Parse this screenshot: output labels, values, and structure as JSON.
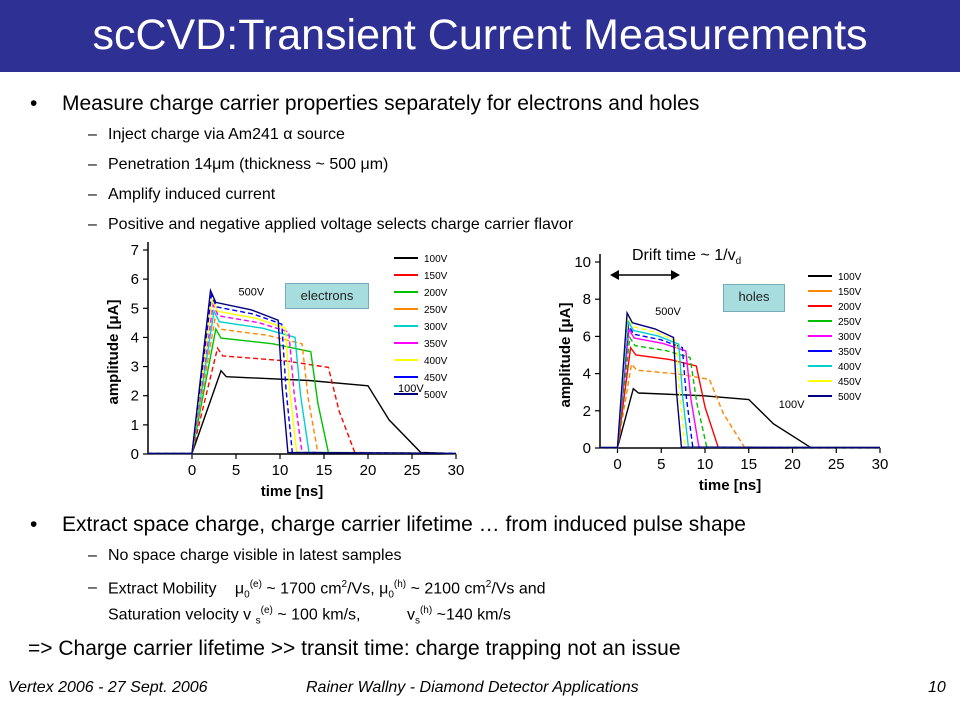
{
  "title": "scCVD:Transient Current Measurements",
  "bullets_top": {
    "main": "Measure charge carrier properties separately for electrons and holes",
    "subs": [
      "Inject charge via Am241 α source",
      "Penetration 14μm (thickness ~ 500 μm)",
      "Amplify induced current",
      "Positive and negative applied voltage selects charge carrier flavor"
    ]
  },
  "figure": {
    "electrons_label": "electrons",
    "holes_label": "holes",
    "drift_prefix": "Drift time ~ 1/v",
    "drift_sub": "d"
  },
  "chart_data": [
    {
      "type": "line",
      "title": "",
      "xlabel": "time [ns]",
      "ylabel": "amplitude [μA]",
      "xlim": [
        -5,
        30
      ],
      "ylim": [
        0,
        7
      ],
      "x_ticks": [
        "0",
        "5",
        "10",
        "15",
        "20",
        "25",
        "30"
      ],
      "y_ticks": [
        "0",
        "1",
        "2",
        "3",
        "4",
        "5",
        "6",
        "7"
      ],
      "legend": [
        "100V",
        "150V",
        "200V",
        "250V",
        "300V",
        "350V",
        "400V",
        "450V",
        "500V"
      ],
      "annotations": [
        "500V",
        "100V"
      ],
      "series": [
        {
          "name": "100V",
          "color": "#000000",
          "rise": 3.3,
          "plateau": 2.6,
          "fall": 20.0,
          "tail": 26.0
        },
        {
          "name": "150V",
          "color": "#ff0000",
          "rise": 2.9,
          "plateau": 3.3,
          "fall": 15.5,
          "tail": 18.5
        },
        {
          "name": "200V",
          "color": "#00c000",
          "rise": 2.7,
          "plateau": 3.9,
          "fall": 13.5,
          "tail": 15.5
        },
        {
          "name": "250V",
          "color": "#ff8800",
          "rise": 2.6,
          "plateau": 4.2,
          "fall": 12.5,
          "tail": 14.3
        },
        {
          "name": "300V",
          "color": "#00d0d0",
          "rise": 2.5,
          "plateau": 4.45,
          "fall": 11.7,
          "tail": 13.3
        },
        {
          "name": "350V",
          "color": "#ff00ff",
          "rise": 2.4,
          "plateau": 4.65,
          "fall": 11.0,
          "tail": 12.5
        },
        {
          "name": "400V",
          "color": "#ffff00",
          "rise": 2.3,
          "plateau": 4.8,
          "fall": 10.6,
          "tail": 11.9
        },
        {
          "name": "450V",
          "color": "#0000ff",
          "rise": 2.2,
          "plateau": 4.95,
          "fall": 10.2,
          "tail": 11.4
        },
        {
          "name": "500V",
          "color": "#000080",
          "rise": 2.1,
          "plateau": 5.1,
          "fall": 9.8,
          "tail": 10.9
        }
      ]
    },
    {
      "type": "line",
      "title": "",
      "xlabel": "time [ns]",
      "ylabel": "amplitude [μA]",
      "xlim": [
        -2,
        30
      ],
      "ylim": [
        0,
        10
      ],
      "x_ticks": [
        "0",
        "5",
        "10",
        "15",
        "20",
        "25",
        "30"
      ],
      "y_ticks": [
        "0",
        "2",
        "4",
        "6",
        "8",
        "10"
      ],
      "legend": [
        "100V",
        "150V",
        "200V",
        "250V",
        "300V",
        "350V",
        "400V",
        "450V",
        "500V"
      ],
      "annotations": [
        "500V",
        "100V"
      ],
      "series": [
        {
          "name": "100V",
          "color": "#000000",
          "rise": 1.8,
          "plateau": 2.9,
          "fall": 15.0,
          "tail": 22.0
        },
        {
          "name": "150V",
          "color": "#ff8800",
          "rise": 1.6,
          "plateau": 4.1,
          "fall": 10.5,
          "tail": 14.5
        },
        {
          "name": "200V",
          "color": "#ff0000",
          "rise": 1.5,
          "plateau": 4.9,
          "fall": 9.0,
          "tail": 11.5
        },
        {
          "name": "250V",
          "color": "#00c000",
          "rise": 1.4,
          "plateau": 5.4,
          "fall": 8.3,
          "tail": 10.2
        },
        {
          "name": "300V",
          "color": "#ff00ff",
          "rise": 1.3,
          "plateau": 5.8,
          "fall": 7.8,
          "tail": 9.3
        },
        {
          "name": "350V",
          "color": "#0000ff",
          "rise": 1.25,
          "plateau": 6.0,
          "fall": 7.4,
          "tail": 8.6
        },
        {
          "name": "400V",
          "color": "#00d0d0",
          "rise": 1.2,
          "plateau": 6.2,
          "fall": 7.0,
          "tail": 8.1
        },
        {
          "name": "450V",
          "color": "#ffff00",
          "rise": 1.15,
          "plateau": 6.4,
          "fall": 6.7,
          "tail": 7.7
        },
        {
          "name": "500V",
          "color": "#000080",
          "rise": 1.1,
          "plateau": 6.6,
          "fall": 6.4,
          "tail": 7.3
        }
      ]
    }
  ],
  "bullets_bottom": {
    "main": "Extract space charge, charge carrier lifetime … from induced pulse shape",
    "sub1": "No space charge visible in latest samples",
    "mob_a": "Extract Mobility",
    "mob_mu": "μ",
    "mob_sub": "0",
    "mob_e": "(e)",
    "mob_e_val": "~ 1700 cm",
    "mob_unit": "/Vs,",
    "mob_h": "(h)",
    "mob_h_val": "~ 2100 cm",
    "mob_end": "/Vs and",
    "two": "2",
    "sat_a": "Saturation velocity v",
    "sat_sub": "s",
    "sat_e_val": "~ 100 km/s,",
    "sat_h_val": "~140 km/s",
    "v": "v"
  },
  "conclusion": "=> Charge carrier lifetime >> transit time: charge trapping not an issue",
  "footer": {
    "left": "Vertex 2006 - 27 Sept. 2006",
    "center": "Rainer Wallny - Diamond Detector Applications",
    "page": "10"
  }
}
